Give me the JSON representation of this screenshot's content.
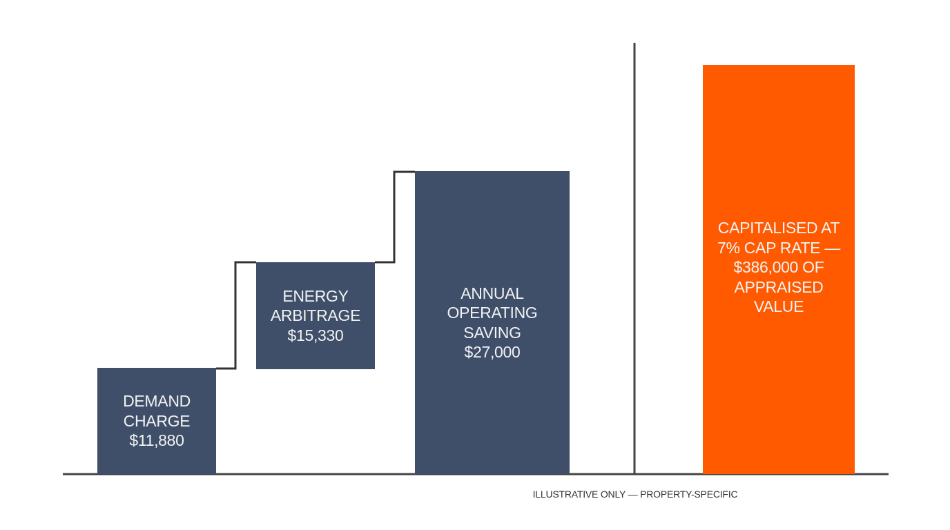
{
  "boxes": [
    {
      "lines": [
        "DEMAND",
        "CHARGE",
        "$11,880"
      ]
    },
    {
      "lines": [
        "ENERGY",
        "ARBITRAGE",
        "$15,330"
      ]
    },
    {
      "lines": [
        "ANNUAL",
        "OPERATING",
        "SAVING",
        "$27,000"
      ]
    },
    {
      "lines": [
        "CAPITALISED AT",
        "7% CAP RATE —",
        "$386,000 OF",
        "APPRAISED",
        "VALUE"
      ]
    }
  ],
  "footnote": "ILLUSTRATIVE ONLY — PROPERTY-SPECIFIC"
}
